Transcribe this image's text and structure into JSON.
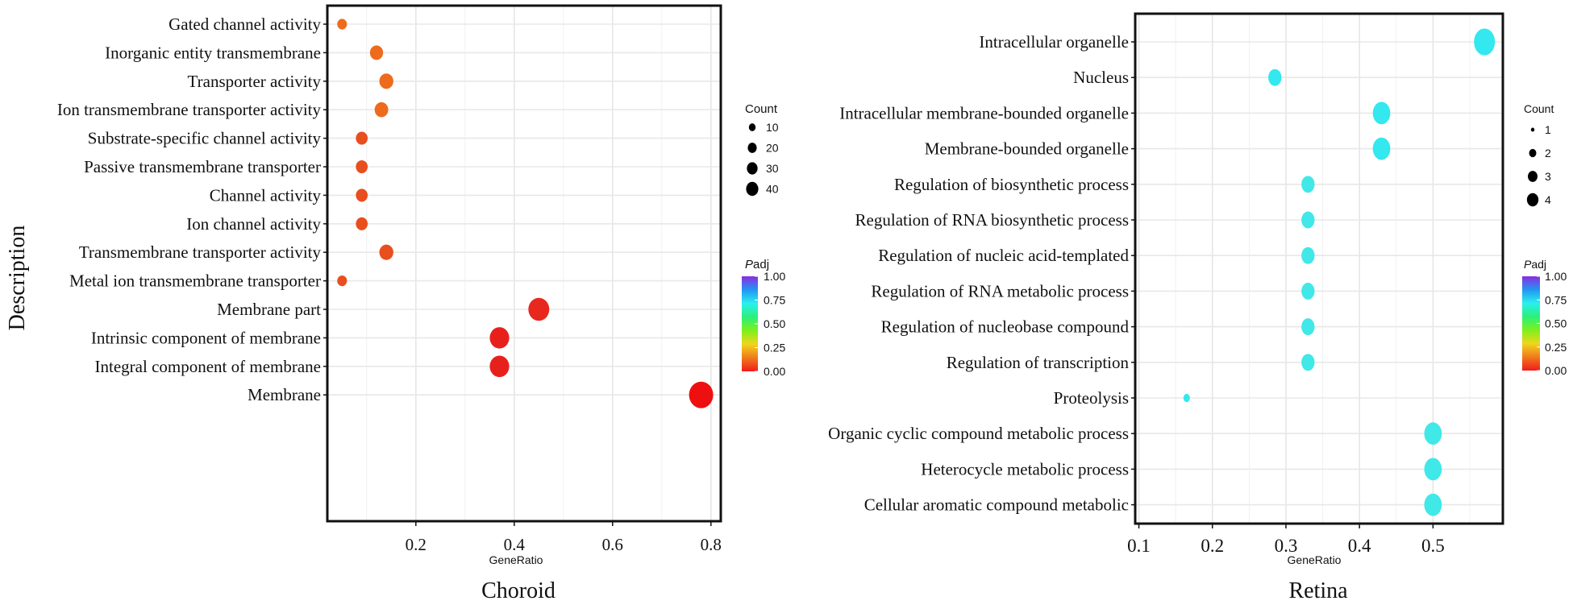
{
  "chart_data": [
    {
      "type": "scatter",
      "title": "Choroid",
      "xlabel": "GeneRatio",
      "ylabel": "Description",
      "xlim": [
        0.02,
        0.82
      ],
      "xticks": [
        0.2,
        0.4,
        0.6,
        0.8
      ],
      "xtick_labels": [
        "0.2",
        "0.4",
        "0.6",
        "0.8"
      ],
      "grid": true,
      "points": [
        {
          "label": "Gated channel activity",
          "x": 0.05,
          "count": 5,
          "padj": 0.12,
          "color": "#ee6a1c"
        },
        {
          "label": "Inorganic  entity transmembrane",
          "x": 0.12,
          "count": 12,
          "padj": 0.12,
          "color": "#ee6a1c"
        },
        {
          "label": "Transporter activity",
          "x": 0.14,
          "count": 14,
          "padj": 0.12,
          "color": "#ee6a1c"
        },
        {
          "label": "Ion transmembrane transporter activity",
          "x": 0.13,
          "count": 13,
          "padj": 0.12,
          "color": "#ee6a1c"
        },
        {
          "label": "Substrate-specific channel activity",
          "x": 0.09,
          "count": 9,
          "padj": 0.06,
          "color": "#e84e1e"
        },
        {
          "label": "Passive transmembrane transporter",
          "x": 0.09,
          "count": 9,
          "padj": 0.06,
          "color": "#e84e1e"
        },
        {
          "label": "Channel activity",
          "x": 0.09,
          "count": 9,
          "padj": 0.06,
          "color": "#e84e1e"
        },
        {
          "label": "Ion channel activity",
          "x": 0.09,
          "count": 9,
          "padj": 0.06,
          "color": "#e84e1e"
        },
        {
          "label": "Transmembrane transporter activity",
          "x": 0.14,
          "count": 14,
          "padj": 0.06,
          "color": "#e84e1e"
        },
        {
          "label": "Metal ion transmembrane transporter",
          "x": 0.05,
          "count": 5,
          "padj": 0.06,
          "color": "#e84e1e"
        },
        {
          "label": "Membrane part",
          "x": 0.45,
          "count": 35,
          "padj": 0.02,
          "color": "#e8281e"
        },
        {
          "label": "Intrinsic component of membrane",
          "x": 0.37,
          "count": 30,
          "padj": 0.01,
          "color": "#e8201c"
        },
        {
          "label": "Integral component of membrane",
          "x": 0.37,
          "count": 30,
          "padj": 0.01,
          "color": "#e8201c"
        },
        {
          "label": "Membrane",
          "x": 0.78,
          "count": 48,
          "padj": 0.0,
          "color": "#ee1010"
        }
      ],
      "size_legend": {
        "title": "Count",
        "values": [
          10,
          20,
          30,
          40
        ],
        "labels": [
          "10",
          "20",
          "30",
          "40"
        ]
      },
      "color_legend": {
        "title_italic": "P",
        "title_rest": "adj",
        "ticks": [
          1.0,
          0.75,
          0.5,
          0.25,
          0.0
        ],
        "tick_labels": [
          "1.00",
          "0.75",
          "0.50",
          "0.25",
          "0.00"
        ],
        "gradient_colors": [
          "#8a2be2",
          "#2196f3",
          "#29f0ee",
          "#2bf07a",
          "#7ef01c",
          "#f0d61c",
          "#f07a1c",
          "#f01c1c"
        ]
      }
    },
    {
      "type": "scatter",
      "title": "Retina",
      "xlabel": "GeneRatio",
      "ylabel": "",
      "xlim": [
        0.095,
        0.595
      ],
      "xticks": [
        0.1,
        0.2,
        0.3,
        0.4,
        0.5
      ],
      "xtick_labels": [
        "0.1",
        "0.2",
        "0.3",
        "0.4",
        "0.5"
      ],
      "grid": true,
      "points": [
        {
          "label": "Intracellular organelle",
          "x": 0.57,
          "count": 4,
          "padj": 0.6,
          "color": "#33e8ee"
        },
        {
          "label": "Nucleus",
          "x": 0.285,
          "count": 2,
          "padj": 0.6,
          "color": "#33e8ee"
        },
        {
          "label": "Intracellular membrane-bounded organelle",
          "x": 0.43,
          "count": 3,
          "padj": 0.6,
          "color": "#33e8ee"
        },
        {
          "label": "Membrane-bounded organelle",
          "x": 0.43,
          "count": 3,
          "padj": 0.6,
          "color": "#33e8ee"
        },
        {
          "label": "Regulation of biosynthetic process",
          "x": 0.33,
          "count": 2,
          "padj": 0.6,
          "color": "#40e8e8"
        },
        {
          "label": "Regulation of RNA biosynthetic process",
          "x": 0.33,
          "count": 2,
          "padj": 0.6,
          "color": "#40e8e8"
        },
        {
          "label": "Regulation of nucleic acid-templated",
          "x": 0.33,
          "count": 2,
          "padj": 0.6,
          "color": "#40e8e8"
        },
        {
          "label": "Regulation of RNA metabolic process",
          "x": 0.33,
          "count": 2,
          "padj": 0.6,
          "color": "#40e8e8"
        },
        {
          "label": "Regulation of nucleobase compound",
          "x": 0.33,
          "count": 2,
          "padj": 0.6,
          "color": "#40e8e8"
        },
        {
          "label": "Regulation of transcription",
          "x": 0.33,
          "count": 2,
          "padj": 0.6,
          "color": "#40e8e8"
        },
        {
          "label": "Proteolysis",
          "x": 0.165,
          "count": 1,
          "padj": 0.6,
          "color": "#33e8ee"
        },
        {
          "label": "Organic cyclic compound metabolic process",
          "x": 0.5,
          "count": 3,
          "padj": 0.6,
          "color": "#40e8e8"
        },
        {
          "label": "Heterocycle metabolic process",
          "x": 0.5,
          "count": 3,
          "padj": 0.6,
          "color": "#40e8e8"
        },
        {
          "label": "Cellular aromatic compound metabolic",
          "x": 0.5,
          "count": 3,
          "padj": 0.6,
          "color": "#40e8e8"
        }
      ],
      "size_legend": {
        "title": "Count",
        "values": [
          1,
          2,
          3,
          4
        ],
        "labels": [
          "1",
          "2",
          "3",
          "4"
        ]
      },
      "color_legend": {
        "title_italic": "P",
        "title_rest": "adj",
        "ticks": [
          1.0,
          0.75,
          0.5,
          0.25,
          0.0
        ],
        "tick_labels": [
          "1.00",
          "0.75",
          "0.50",
          "0.25",
          "0.00"
        ],
        "gradient_colors": [
          "#8a2be2",
          "#2196f3",
          "#29f0ee",
          "#2bf07a",
          "#7ef01c",
          "#f0d61c",
          "#f07a1c",
          "#f01c1c"
        ]
      }
    }
  ]
}
